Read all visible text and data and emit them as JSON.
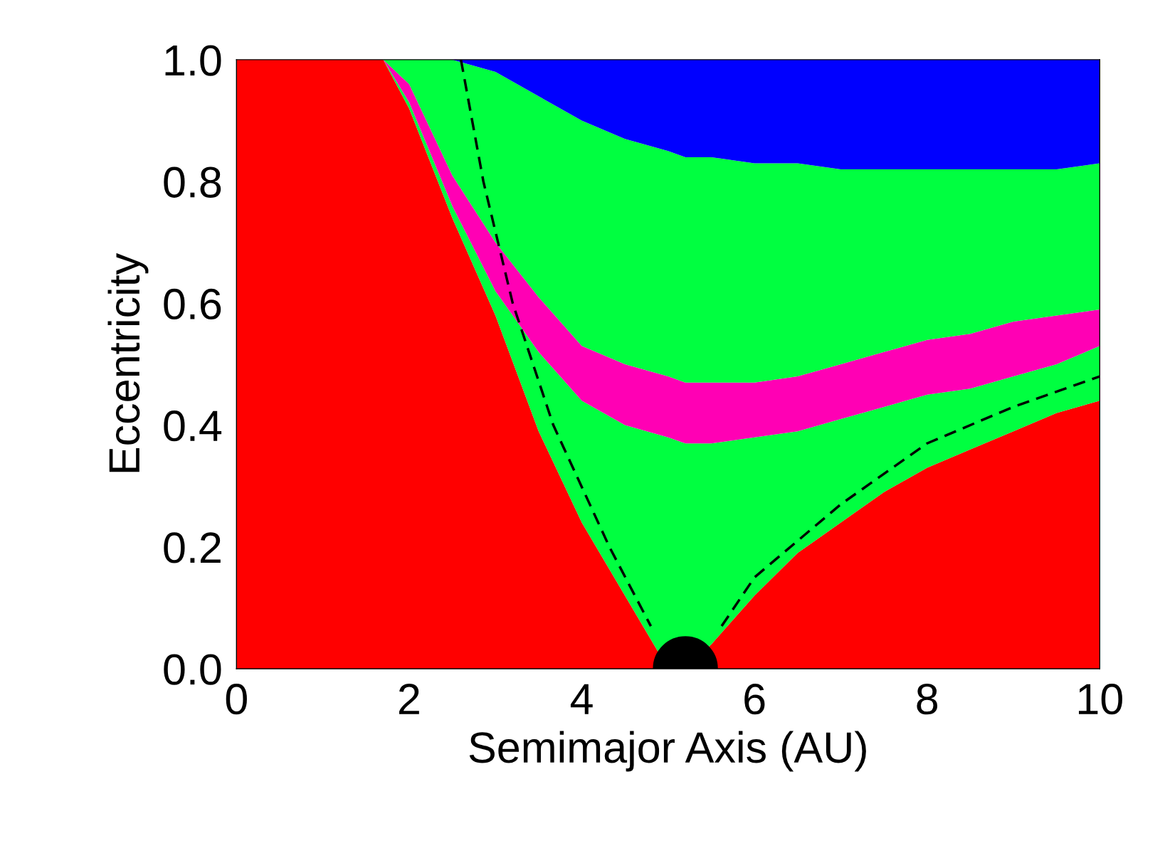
{
  "chart_data": {
    "type": "area",
    "stacked": true,
    "xlabel": "Semimajor Axis (AU)",
    "ylabel": "Eccentricity",
    "x": [
      0,
      1,
      1.7,
      2,
      2.5,
      3,
      3.5,
      4,
      4.5,
      5,
      5.2,
      5.5,
      6,
      6.5,
      7,
      7.5,
      8,
      8.5,
      9,
      9.5,
      10
    ],
    "series": [
      {
        "color": "#ff0000",
        "values": [
          1,
          1,
          1,
          0.92,
          0.74,
          0.58,
          0.39,
          0.24,
          0.12,
          0,
          0,
          0.04,
          0.12,
          0.19,
          0.24,
          0.29,
          0.33,
          0.36,
          0.39,
          0.42,
          0.44
        ]
      },
      {
        "color": "#00ff40",
        "values": [
          null,
          null,
          0,
          0.01,
          0.02,
          0.04,
          0.13,
          0.2,
          0.28,
          0.38,
          0.37,
          0.33,
          0.26,
          0.2,
          0.17,
          0.14,
          0.12,
          0.1,
          0.09,
          0.08,
          0.09
        ]
      },
      {
        "color": "#ff00b4",
        "values": [
          null,
          null,
          0,
          0.03,
          0.05,
          0.08,
          0.09,
          0.09,
          0.1,
          0.1,
          0.1,
          0.1,
          0.09,
          0.09,
          0.09,
          0.09,
          0.09,
          0.09,
          0.09,
          0.08,
          0.06
        ]
      },
      {
        "color": "#00ff40",
        "values": [
          null,
          null,
          0,
          0.04,
          0.19,
          0.28,
          0.33,
          0.37,
          0.37,
          0.37,
          0.37,
          0.37,
          0.36,
          0.35,
          0.32,
          0.3,
          0.28,
          0.27,
          0.25,
          0.24,
          0.24
        ]
      },
      {
        "color": "#0000ff",
        "values": [
          null,
          null,
          null,
          null,
          0,
          0.02,
          0.06,
          0.1,
          0.13,
          0.15,
          0.16,
          0.16,
          0.17,
          0.17,
          0.18,
          0.18,
          0.18,
          0.18,
          0.18,
          0.18,
          0.17
        ]
      },
      {
        "type": "line",
        "color": "#000000",
        "line_style": "dashed",
        "x": [
          2.6,
          2.86,
          3.2,
          3.67,
          4.32,
          4.8
        ],
        "values": [
          1.0,
          0.8,
          0.6,
          0.4,
          0.2,
          0.07
        ]
      },
      {
        "type": "line",
        "color": "#000000",
        "line_style": "dashed",
        "x": [
          5.62,
          6,
          7,
          8,
          9,
          10
        ],
        "values": [
          0.07,
          0.15,
          0.27,
          0.37,
          0.43,
          0.48
        ]
      },
      {
        "type": "scatter",
        "color": "#000000",
        "marker": "circle",
        "x": [
          5.2
        ],
        "values": [
          0
        ]
      }
    ],
    "xlim": [
      0,
      10
    ],
    "xticks": [
      0,
      2,
      4,
      6,
      8,
      10
    ],
    "ylim": [
      0,
      1
    ],
    "yticks": [
      {
        "value": 0,
        "label": "0.0"
      },
      0.2,
      0.4,
      0.6,
      0.8,
      {
        "value": 1,
        "label": "1.0"
      }
    ],
    "grid": false,
    "legend": false
  }
}
